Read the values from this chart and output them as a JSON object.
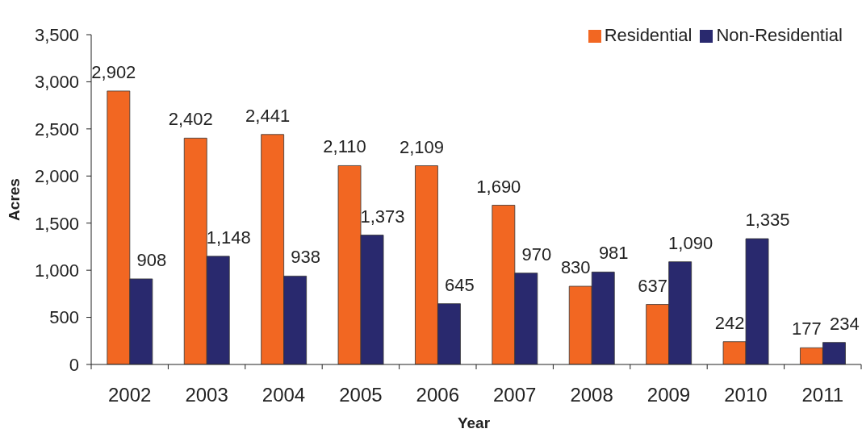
{
  "chart_data": {
    "type": "bar",
    "xlabel": "Year",
    "ylabel": "Acres",
    "categories": [
      "2002",
      "2003",
      "2004",
      "2005",
      "2006",
      "2007",
      "2008",
      "2009",
      "2010",
      "2011"
    ],
    "series": [
      {
        "name": "Residential",
        "color": "#f26722",
        "values": [
          2902,
          2402,
          2441,
          2110,
          2109,
          1690,
          830,
          637,
          242,
          177
        ],
        "value_labels": [
          "2,902",
          "2,402",
          "2,441",
          "2,110",
          "2,109",
          "1,690",
          "830",
          "637",
          "242",
          "177"
        ]
      },
      {
        "name": "Non-Residential",
        "color": "#29296e",
        "values": [
          908,
          1148,
          938,
          1373,
          645,
          970,
          981,
          1090,
          1335,
          234
        ],
        "value_labels": [
          "908",
          "1,148",
          "938",
          "1,373",
          "645",
          "970",
          "981",
          "1,090",
          "1,335",
          "234"
        ]
      }
    ],
    "ylim": [
      0,
      3500
    ],
    "yticks": [
      0,
      500,
      {
        "value": 1000,
        "label": "1,000"
      },
      {
        "value": 1500,
        "label": "1,500"
      },
      {
        "value": 2000,
        "label": "2,000"
      },
      {
        "value": 2500,
        "label": "2,500"
      },
      {
        "value": 3000,
        "label": "3,000"
      },
      {
        "value": 3500,
        "label": "3,500"
      }
    ],
    "grid": false,
    "legend": "top right"
  }
}
